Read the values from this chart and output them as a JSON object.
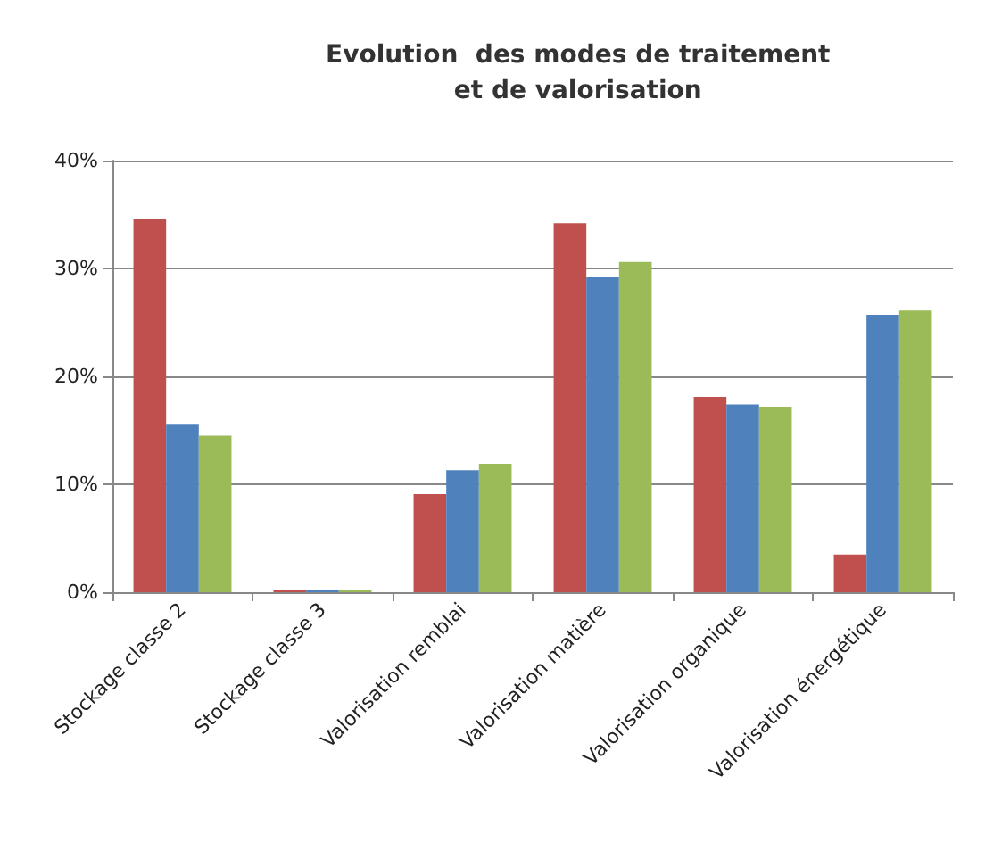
{
  "chart_data": {
    "type": "bar",
    "title": "Evolution  des modes de traitement\net de valorisation",
    "categories": [
      "Stockage classe 2",
      "Stockage classe 3",
      "Valorisation remblai",
      "Valorisation matière",
      "Valorisation organique",
      "Valorisation énergétique"
    ],
    "series": [
      {
        "color": "#c0504d",
        "values": [
          34.6,
          0.2,
          9.1,
          34.2,
          18.1,
          3.5
        ]
      },
      {
        "color": "#4f81bd",
        "values": [
          15.6,
          0.2,
          11.3,
          29.2,
          17.4,
          25.7
        ]
      },
      {
        "color": "#9bbb59",
        "values": [
          14.5,
          0.2,
          11.9,
          30.6,
          17.2,
          26.1
        ]
      }
    ],
    "ylim": [
      0,
      40
    ],
    "yticks": [
      {
        "value": 0,
        "label": "0%"
      },
      {
        "value": 10,
        "label": "10%"
      },
      {
        "value": 20,
        "label": "20%"
      },
      {
        "value": 30,
        "label": "30%"
      },
      {
        "value": 40,
        "label": "40%"
      }
    ],
    "grid": "y"
  }
}
